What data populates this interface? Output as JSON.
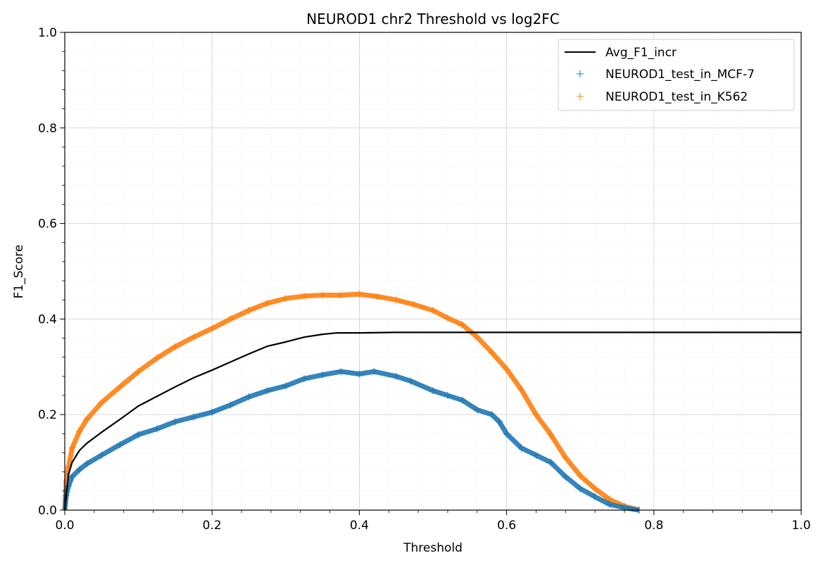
{
  "chart_data": {
    "type": "line",
    "title": "NEUROD1 chr2 Threshold vs log2FC",
    "xlabel": "Threshold",
    "ylabel": "F1_Score",
    "xlim": [
      0,
      1
    ],
    "ylim": [
      0,
      1
    ],
    "xticks": [
      "0.0",
      "0.2",
      "0.4",
      "0.6",
      "0.8",
      "1.0"
    ],
    "yticks": [
      "0.0",
      "0.2",
      "0.4",
      "0.6",
      "0.8",
      "1.0"
    ],
    "grid": true,
    "minor_ticks": true,
    "legend_position": "top-right",
    "series": [
      {
        "name": "Avg_F1_incr",
        "style": "line",
        "color": "#000000",
        "x": [
          0.0,
          0.005,
          0.01,
          0.02,
          0.03,
          0.05,
          0.075,
          0.1,
          0.125,
          0.15,
          0.175,
          0.2,
          0.225,
          0.25,
          0.275,
          0.3,
          0.325,
          0.35,
          0.37,
          0.4,
          0.45,
          0.5,
          0.6,
          0.7,
          0.8,
          0.9,
          1.0
        ],
        "y": [
          0.0,
          0.075,
          0.1,
          0.125,
          0.14,
          0.163,
          0.19,
          0.218,
          0.238,
          0.258,
          0.277,
          0.293,
          0.31,
          0.327,
          0.343,
          0.352,
          0.362,
          0.368,
          0.371,
          0.371,
          0.372,
          0.372,
          0.372,
          0.372,
          0.372,
          0.372,
          0.372
        ]
      },
      {
        "name": "NEUROD1_test_in_MCF-7",
        "style": "markers",
        "marker": "+",
        "color": "#1f77b4",
        "x": [
          0.0,
          0.002,
          0.005,
          0.01,
          0.02,
          0.03,
          0.05,
          0.075,
          0.1,
          0.125,
          0.15,
          0.175,
          0.2,
          0.225,
          0.25,
          0.275,
          0.3,
          0.325,
          0.35,
          0.375,
          0.4,
          0.42,
          0.45,
          0.47,
          0.5,
          0.52,
          0.54,
          0.56,
          0.58,
          0.59,
          0.6,
          0.62,
          0.64,
          0.66,
          0.68,
          0.7,
          0.72,
          0.74,
          0.76,
          0.78
        ],
        "y": [
          0.0,
          0.03,
          0.05,
          0.07,
          0.085,
          0.097,
          0.115,
          0.137,
          0.158,
          0.17,
          0.185,
          0.195,
          0.205,
          0.22,
          0.237,
          0.25,
          0.26,
          0.275,
          0.283,
          0.29,
          0.285,
          0.29,
          0.28,
          0.27,
          0.25,
          0.24,
          0.23,
          0.21,
          0.2,
          0.185,
          0.16,
          0.13,
          0.115,
          0.1,
          0.07,
          0.045,
          0.028,
          0.012,
          0.005,
          0.0
        ]
      },
      {
        "name": "NEUROD1_test_in_K562",
        "style": "markers",
        "marker": "+",
        "color": "#ff7f0e",
        "x": [
          0.0,
          0.002,
          0.005,
          0.01,
          0.02,
          0.03,
          0.05,
          0.075,
          0.1,
          0.125,
          0.15,
          0.175,
          0.2,
          0.225,
          0.25,
          0.275,
          0.3,
          0.325,
          0.35,
          0.375,
          0.4,
          0.425,
          0.45,
          0.475,
          0.5,
          0.52,
          0.54,
          0.56,
          0.58,
          0.6,
          0.62,
          0.64,
          0.66,
          0.68,
          0.7,
          0.72,
          0.74,
          0.76,
          0.78
        ],
        "y": [
          0.0,
          0.06,
          0.09,
          0.13,
          0.165,
          0.19,
          0.225,
          0.258,
          0.29,
          0.318,
          0.342,
          0.362,
          0.38,
          0.4,
          0.418,
          0.433,
          0.443,
          0.448,
          0.45,
          0.45,
          0.452,
          0.447,
          0.44,
          0.43,
          0.418,
          0.402,
          0.388,
          0.362,
          0.33,
          0.295,
          0.252,
          0.2,
          0.158,
          0.11,
          0.072,
          0.045,
          0.022,
          0.008,
          0.0
        ]
      }
    ]
  }
}
